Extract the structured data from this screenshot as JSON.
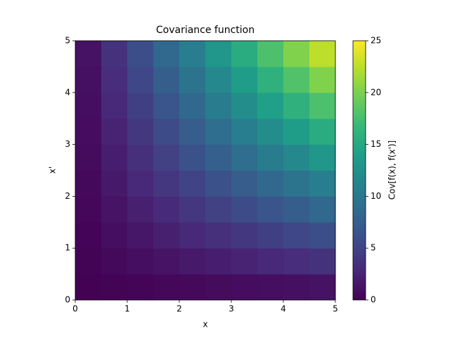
{
  "chart_data": {
    "type": "heatmap",
    "title": "Covariance function",
    "xlabel": "x",
    "ylabel": "x'",
    "colorbar_label": "Cov[f(x), f(x')]",
    "colormap": "viridis",
    "x": [
      0.25,
      0.75,
      1.25,
      1.75,
      2.25,
      2.75,
      3.25,
      3.75,
      4.25,
      4.75
    ],
    "y": [
      0.25,
      0.75,
      1.25,
      1.75,
      2.25,
      2.75,
      3.25,
      3.75,
      4.25,
      4.75
    ],
    "z": [
      [
        0.0625,
        0.1875,
        0.3125,
        0.4375,
        0.5625,
        0.6875,
        0.8125,
        0.9375,
        1.0625,
        1.1875
      ],
      [
        0.1875,
        0.5625,
        0.9375,
        1.3125,
        1.6875,
        2.0625,
        2.4375,
        2.8125,
        3.1875,
        3.5625
      ],
      [
        0.3125,
        0.9375,
        1.5625,
        2.1875,
        2.8125,
        3.4375,
        4.0625,
        4.6875,
        5.3125,
        5.9375
      ],
      [
        0.4375,
        1.3125,
        2.1875,
        3.0625,
        3.9375,
        4.8125,
        5.6875,
        6.5625,
        7.4375,
        8.3125
      ],
      [
        0.5625,
        1.6875,
        2.8125,
        3.9375,
        5.0625,
        6.1875,
        7.3125,
        8.4375,
        9.5625,
        10.6875
      ],
      [
        0.6875,
        2.0625,
        3.4375,
        4.8125,
        6.1875,
        7.5625,
        8.9375,
        10.3125,
        11.6875,
        13.0625
      ],
      [
        0.8125,
        2.4375,
        4.0625,
        5.6875,
        7.3125,
        8.9375,
        10.5625,
        12.1875,
        13.8125,
        15.4375
      ],
      [
        0.9375,
        2.8125,
        4.6875,
        6.5625,
        8.4375,
        10.3125,
        12.1875,
        14.0625,
        15.9375,
        17.8125
      ],
      [
        1.0625,
        3.1875,
        5.3125,
        7.4375,
        9.5625,
        11.6875,
        13.8125,
        15.9375,
        18.0625,
        20.1875
      ],
      [
        1.1875,
        3.5625,
        5.9375,
        8.3125,
        10.6875,
        13.0625,
        15.4375,
        17.8125,
        20.1875,
        22.5625
      ]
    ],
    "xlim": [
      0,
      5
    ],
    "ylim": [
      0,
      5
    ],
    "xticks": [
      0,
      1,
      2,
      3,
      4,
      5
    ],
    "yticks": [
      0,
      1,
      2,
      3,
      4,
      5
    ],
    "clim": [
      0,
      25
    ],
    "cticks": [
      0,
      5,
      10,
      15,
      20,
      25
    ]
  }
}
